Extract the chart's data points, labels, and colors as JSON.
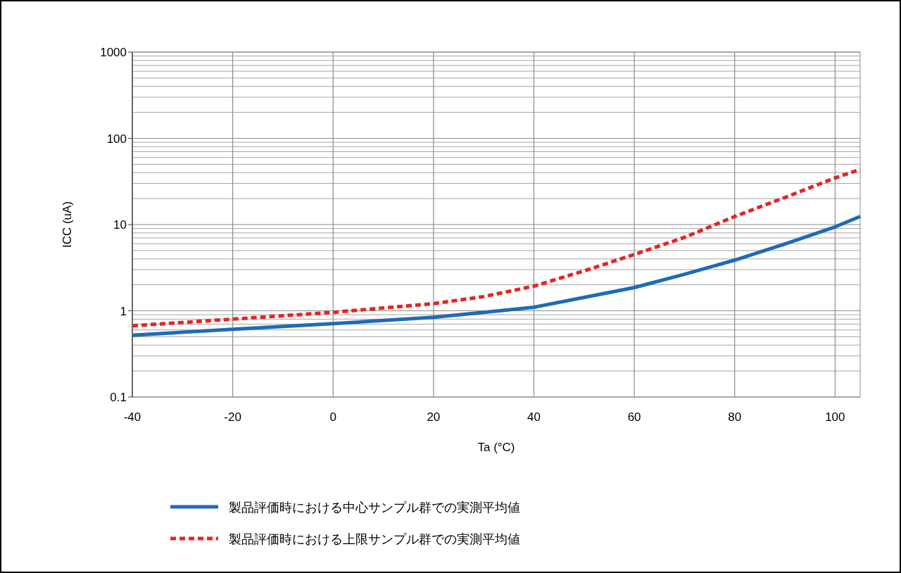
{
  "chart_data": {
    "type": "line",
    "xlabel": "Ta (°C)",
    "ylabel": "ICC (uA)",
    "x": [
      -40,
      -20,
      0,
      20,
      30,
      40,
      50,
      60,
      70,
      80,
      90,
      100,
      105
    ],
    "xlim": [
      -40,
      105
    ],
    "xticks": [
      -40,
      -20,
      0,
      20,
      40,
      60,
      80,
      100
    ],
    "ylim": [
      0.1,
      1000
    ],
    "yticks": [
      0.1,
      1,
      10,
      100,
      1000
    ],
    "log": "y",
    "grid": true,
    "legend": "bottom",
    "marker": "none",
    "series": [
      {
        "name": "製品評価時における中心サンプル群での実測平均値",
        "color": "#1f6bb5",
        "line_style": "solid",
        "values": [
          0.52,
          0.61,
          0.71,
          0.84,
          0.96,
          1.1,
          1.43,
          1.86,
          2.65,
          3.87,
          5.95,
          9.4,
          12.4
        ]
      },
      {
        "name": "製品評価時における上限サンプル群での実測平均値",
        "color": "#e52421",
        "line_style": "dashed",
        "values": [
          0.67,
          0.8,
          0.96,
          1.21,
          1.46,
          1.93,
          2.9,
          4.5,
          7.1,
          12.4,
          20.6,
          34.7,
          43.6
        ]
      }
    ]
  }
}
